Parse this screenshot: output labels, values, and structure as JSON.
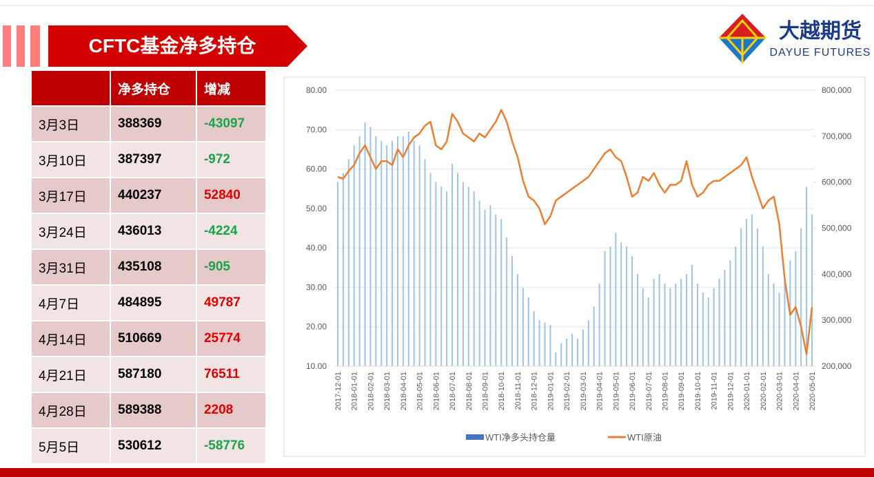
{
  "header": {
    "title": "CFTC基金净多持仓",
    "logo_cn": "大越期货",
    "logo_en": "DAYUE FUTURES"
  },
  "table": {
    "columns": [
      "净多持仓",
      "增减"
    ],
    "rows": [
      [
        "3月3日",
        "388369",
        "-43097"
      ],
      [
        "3月10日",
        "387397",
        "-972"
      ],
      [
        "3月17日",
        "440237",
        "52840"
      ],
      [
        "3月24日",
        "436013",
        "-4224"
      ],
      [
        "3月31日",
        "435108",
        "-905"
      ],
      [
        "4月7日",
        "484895",
        "49787"
      ],
      [
        "4月14日",
        "510669",
        "25774"
      ],
      [
        "4月21日",
        "587180",
        "76511"
      ],
      [
        "4月28日",
        "589388",
        "2208"
      ],
      [
        "5月5日",
        "530612",
        "-58776"
      ]
    ]
  },
  "chart_data": {
    "type": "bar-line",
    "categories": [
      "2017-12-01",
      null,
      null,
      "2018-01-01",
      null,
      null,
      "2018-02-01",
      null,
      null,
      "2018-03-01",
      null,
      null,
      "2018-04-01",
      null,
      null,
      "2018-05-01",
      null,
      null,
      "2018-06-01",
      null,
      null,
      "2018-07-01",
      null,
      null,
      "2018-08-01",
      null,
      null,
      "2018-09-01",
      null,
      null,
      "2018-10-01",
      null,
      null,
      "2018-11-01",
      null,
      null,
      "2018-12-01",
      null,
      null,
      "2019-01-01",
      null,
      null,
      "2019-02-01",
      null,
      null,
      "2019-03-01",
      null,
      null,
      "2019-04-01",
      null,
      null,
      "2019-05-01",
      null,
      null,
      "2019-06-01",
      null,
      null,
      "2019-07-01",
      null,
      null,
      "2019-08-01",
      null,
      null,
      "2019-09-01",
      null,
      null,
      "2019-10-01",
      null,
      null,
      "2019-11-01",
      null,
      null,
      "2019-12-01",
      null,
      null,
      "2020-01-01",
      null,
      null,
      "2020-02-01",
      null,
      null,
      "2020-03-01",
      null,
      null,
      "2020-04-01",
      null,
      null,
      "2020-05-01"
    ],
    "series": [
      {
        "name": "WTI净多头持仓量",
        "color": "#9dc3e6",
        "legend_color": "#4472c4",
        "axis": "y2",
        "values": [
          600000,
          620000,
          650000,
          680000,
          700000,
          730000,
          720000,
          700000,
          690000,
          680000,
          690000,
          700000,
          700000,
          710000,
          690000,
          680000,
          650000,
          620000,
          600000,
          590000,
          580000,
          640000,
          620000,
          600000,
          590000,
          580000,
          560000,
          540000,
          550000,
          530000,
          520000,
          480000,
          440000,
          400000,
          370000,
          350000,
          320000,
          300000,
          295000,
          290000,
          230000,
          250000,
          260000,
          270000,
          260000,
          280000,
          300000,
          330000,
          380000,
          450000,
          460000,
          490000,
          470000,
          460000,
          440000,
          400000,
          370000,
          350000,
          390000,
          400000,
          380000,
          370000,
          380000,
          390000,
          400000,
          420000,
          380000,
          360000,
          350000,
          370000,
          390000,
          410000,
          430000,
          460000,
          500000,
          520000,
          530000,
          500000,
          460000,
          400000,
          380000,
          360000,
          390000,
          430000,
          450000,
          500000,
          590000,
          530000
        ]
      },
      {
        "name": "WTI原油",
        "color": "#ed7d31",
        "values": [
          58,
          57.5,
          59.5,
          61,
          64,
          66,
          63,
          60,
          62,
          62,
          61,
          65,
          63,
          66,
          68,
          69,
          71,
          72,
          66,
          65,
          67,
          74,
          72,
          69,
          68,
          67,
          69,
          68,
          70,
          72,
          75,
          72,
          67,
          63,
          57,
          53,
          52,
          50,
          46,
          48,
          52,
          53,
          54,
          55,
          56,
          57,
          58,
          60,
          62,
          64,
          65,
          63,
          62,
          58,
          53,
          54,
          58,
          57,
          59,
          56,
          54,
          56,
          56,
          57,
          62,
          56,
          53,
          54,
          56,
          57,
          57,
          58,
          59,
          60,
          61,
          63,
          58,
          54,
          50,
          52,
          53,
          46,
          32,
          23,
          25,
          20,
          13,
          25
        ]
      }
    ],
    "ylim": [
      10,
      80
    ],
    "yticks": [
      {
        "value": 10,
        "label": "10.00"
      },
      {
        "value": 20,
        "label": "20.00"
      },
      {
        "value": 30,
        "label": "30.00"
      },
      {
        "value": 40,
        "label": "40.00"
      },
      {
        "value": 50,
        "label": "50.00"
      },
      {
        "value": 60,
        "label": "60.00"
      },
      {
        "value": 70,
        "label": "70.00"
      },
      {
        "value": 80,
        "label": "80.00"
      }
    ],
    "y2lim": [
      200000,
      800000
    ],
    "y2ticks": [
      {
        "value": 200000,
        "label": "200,000"
      },
      {
        "value": 300000,
        "label": "300,000"
      },
      {
        "value": 400000,
        "label": "400,000"
      },
      {
        "value": 500000,
        "label": "500,000"
      },
      {
        "value": 600000,
        "label": "600,000"
      },
      {
        "value": 700000,
        "label": "700,000"
      },
      {
        "value": 800000,
        "label": "800,000"
      }
    ],
    "grid": true,
    "legend": "bottom"
  }
}
